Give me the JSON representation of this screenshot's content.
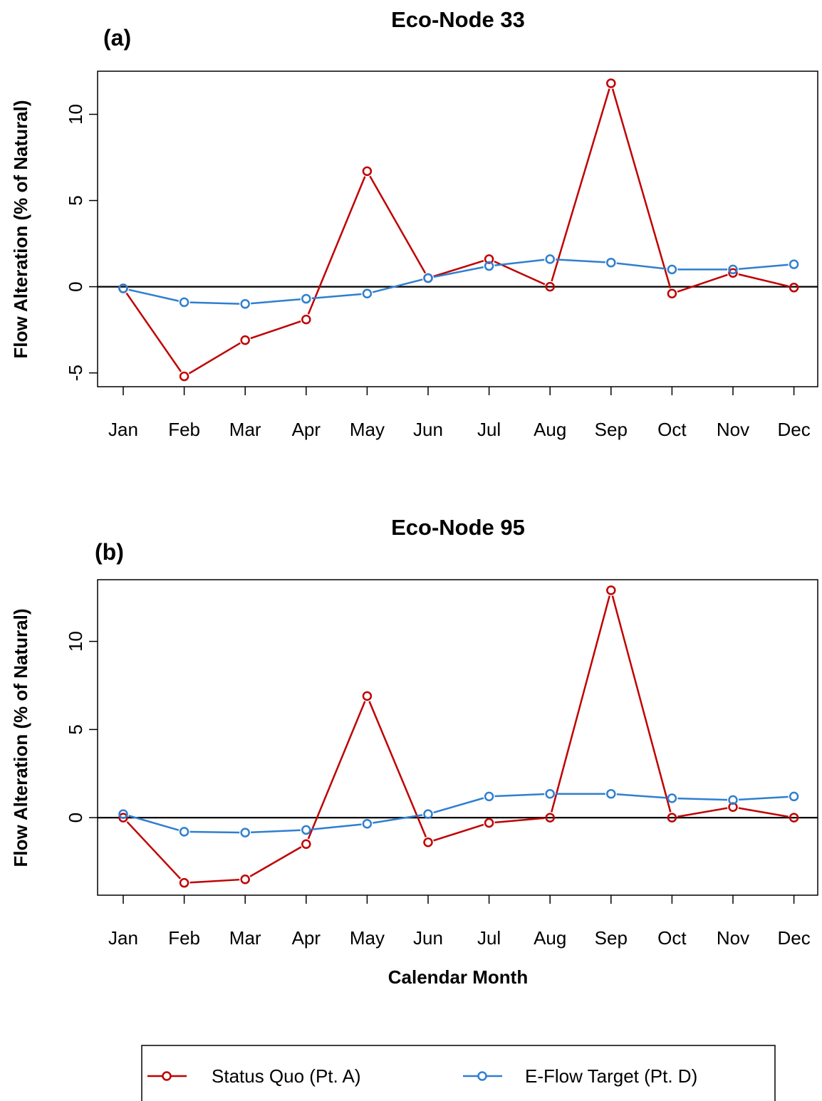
{
  "shared": {
    "categories": [
      "Jan",
      "Feb",
      "Mar",
      "Apr",
      "May",
      "Jun",
      "Jul",
      "Aug",
      "Sep",
      "Oct",
      "Nov",
      "Dec"
    ],
    "ylabel": "Flow Alteration (% of Natural)",
    "xlabel": "Calendar Month",
    "colors": {
      "status_quo": "#c00000",
      "eflow": "#2f7fd0"
    }
  },
  "legend": {
    "items": [
      {
        "label": "Status Quo (Pt. A)",
        "color": "#c00000"
      },
      {
        "label": "E-Flow Target (Pt. D)",
        "color": "#2f7fd0"
      }
    ]
  },
  "chart_data": [
    {
      "type": "line",
      "title": "Eco-Node 33",
      "panel_label": "(a)",
      "categories": [
        "Jan",
        "Feb",
        "Mar",
        "Apr",
        "May",
        "Jun",
        "Jul",
        "Aug",
        "Sep",
        "Oct",
        "Nov",
        "Dec"
      ],
      "ylabel": "Flow Alteration (% of Natural)",
      "xlabel": "",
      "ylim": [
        -5.8,
        12.5
      ],
      "yticks": [
        -5,
        0,
        5,
        10
      ],
      "reference_line": 0,
      "series": [
        {
          "name": "Status Quo (Pt. A)",
          "color": "#c00000",
          "values": [
            -0.1,
            -5.2,
            -3.1,
            -1.9,
            6.7,
            0.5,
            1.6,
            0.0,
            11.8,
            -0.4,
            0.8,
            -0.05
          ]
        },
        {
          "name": "E-Flow Target (Pt. D)",
          "color": "#2f7fd0",
          "values": [
            -0.1,
            -0.9,
            -1.0,
            -0.7,
            -0.4,
            0.5,
            1.2,
            1.6,
            1.4,
            1.0,
            1.0,
            1.3
          ]
        }
      ]
    },
    {
      "type": "line",
      "title": "Eco-Node 95",
      "panel_label": "(b)",
      "categories": [
        "Jan",
        "Feb",
        "Mar",
        "Apr",
        "May",
        "Jun",
        "Jul",
        "Aug",
        "Sep",
        "Oct",
        "Nov",
        "Dec"
      ],
      "ylabel": "Flow Alteration (% of Natural)",
      "xlabel": "Calendar Month",
      "ylim": [
        -4.4,
        13.5
      ],
      "yticks": [
        0,
        5,
        10
      ],
      "reference_line": 0,
      "series": [
        {
          "name": "Status Quo (Pt. A)",
          "color": "#c00000",
          "values": [
            0.0,
            -3.7,
            -3.5,
            -1.5,
            6.9,
            -1.4,
            -0.3,
            0.0,
            12.9,
            0.0,
            0.6,
            0.0
          ]
        },
        {
          "name": "E-Flow Target (Pt. D)",
          "color": "#2f7fd0",
          "values": [
            0.2,
            -0.8,
            -0.85,
            -0.7,
            -0.35,
            0.2,
            1.2,
            1.35,
            1.35,
            1.1,
            1.0,
            1.2
          ]
        }
      ]
    }
  ]
}
